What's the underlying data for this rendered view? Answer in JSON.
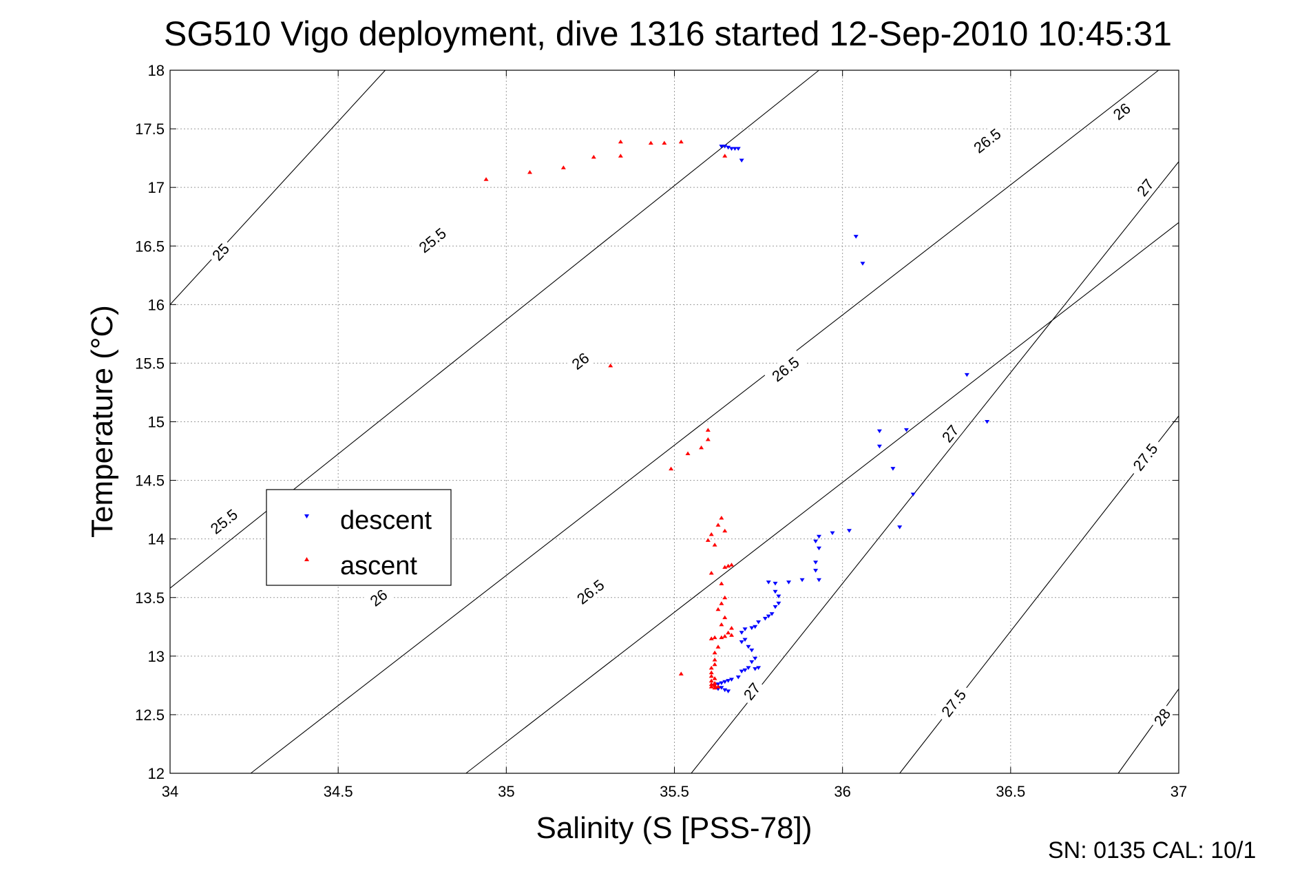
{
  "chart_data": {
    "type": "scatter",
    "title": "SG510 Vigo deployment, dive 1316 started 12-Sep-2010 10:45:31",
    "xlabel": "Salinity (S [PSS-78])",
    "ylabel": "Temperature (°C)",
    "xlim": [
      34,
      37
    ],
    "ylim": [
      12,
      18
    ],
    "xticks": [
      "34",
      "34.5",
      "35",
      "35.5",
      "36",
      "36.5",
      "37"
    ],
    "yticks": [
      "12",
      "12.5",
      "13",
      "13.5",
      "14",
      "14.5",
      "15",
      "15.5",
      "16",
      "16.5",
      "17",
      "17.5",
      "18"
    ],
    "grid": true,
    "legend_position": "left-center",
    "footer": "SN: 0135  CAL: 10/1",
    "colors": {
      "descent": "#0000ff",
      "ascent": "#ff0000",
      "contour": "#000000",
      "grid": "#999999"
    },
    "density_contours": [
      {
        "sigma": "25",
        "points": [
          [
            34.0,
            16.0
          ],
          [
            34.64,
            18.0
          ]
        ],
        "labels": [
          [
            34.15,
            16.45
          ]
        ]
      },
      {
        "sigma": "25.5",
        "points": [
          [
            34.0,
            13.58
          ],
          [
            35.93,
            18.0
          ]
        ],
        "labels": [
          [
            34.16,
            14.15
          ],
          [
            34.78,
            16.55
          ]
        ]
      },
      {
        "sigma": "26",
        "points": [
          [
            34.24,
            12.0
          ],
          [
            36.94,
            18.0
          ]
        ],
        "labels": [
          [
            34.62,
            13.5
          ],
          [
            35.22,
            15.52
          ],
          [
            36.83,
            17.65
          ]
        ]
      },
      {
        "sigma": "26.5",
        "points": [
          [
            34.88,
            12.0
          ],
          [
            37.0,
            16.7
          ]
        ],
        "labels": [
          [
            35.25,
            13.55
          ],
          [
            35.83,
            15.45
          ],
          [
            36.43,
            17.4
          ]
        ]
      },
      {
        "sigma": "27",
        "points": [
          [
            35.55,
            12.0
          ],
          [
            37.0,
            17.22
          ]
        ],
        "labels": [
          [
            35.73,
            12.7
          ],
          [
            36.32,
            14.9
          ],
          [
            36.9,
            17.0
          ]
        ]
      },
      {
        "sigma": "27.5",
        "points": [
          [
            36.17,
            12.0
          ],
          [
            37.0,
            15.05
          ]
        ],
        "labels": [
          [
            36.33,
            12.6
          ],
          [
            36.9,
            14.7
          ]
        ]
      },
      {
        "sigma": "28",
        "points": [
          [
            36.82,
            12.0
          ],
          [
            37.0,
            12.72
          ]
        ],
        "labels": [
          [
            36.95,
            12.48
          ]
        ]
      }
    ],
    "series": [
      {
        "name": "descent",
        "marker": "triangle-down",
        "points": [
          [
            35.64,
            17.35
          ],
          [
            35.65,
            17.35
          ],
          [
            35.66,
            17.34
          ],
          [
            35.67,
            17.33
          ],
          [
            35.68,
            17.33
          ],
          [
            35.69,
            17.33
          ],
          [
            35.7,
            17.23
          ],
          [
            36.04,
            16.58
          ],
          [
            36.06,
            16.35
          ],
          [
            36.37,
            15.4
          ],
          [
            36.43,
            15.0
          ],
          [
            36.11,
            14.92
          ],
          [
            36.11,
            14.79
          ],
          [
            36.19,
            14.93
          ],
          [
            36.15,
            14.6
          ],
          [
            36.21,
            14.38
          ],
          [
            36.17,
            14.1
          ],
          [
            36.02,
            14.07
          ],
          [
            35.97,
            14.05
          ],
          [
            35.93,
            14.02
          ],
          [
            35.92,
            13.98
          ],
          [
            35.93,
            13.92
          ],
          [
            35.92,
            13.8
          ],
          [
            35.92,
            13.73
          ],
          [
            35.93,
            13.65
          ],
          [
            35.88,
            13.65
          ],
          [
            35.84,
            13.63
          ],
          [
            35.8,
            13.62
          ],
          [
            35.78,
            13.63
          ],
          [
            35.8,
            13.55
          ],
          [
            35.81,
            13.51
          ],
          [
            35.81,
            13.45
          ],
          [
            35.8,
            13.42
          ],
          [
            35.79,
            13.36
          ],
          [
            35.78,
            13.34
          ],
          [
            35.77,
            13.32
          ],
          [
            35.75,
            13.29
          ],
          [
            35.74,
            13.25
          ],
          [
            35.73,
            13.24
          ],
          [
            35.71,
            13.23
          ],
          [
            35.7,
            13.2
          ],
          [
            35.71,
            13.14
          ],
          [
            35.7,
            13.12
          ],
          [
            35.72,
            13.08
          ],
          [
            35.73,
            13.05
          ],
          [
            35.74,
            12.98
          ],
          [
            35.73,
            12.95
          ],
          [
            35.72,
            12.9
          ],
          [
            35.71,
            12.88
          ],
          [
            35.7,
            12.87
          ],
          [
            35.74,
            12.89
          ],
          [
            35.75,
            12.9
          ],
          [
            35.69,
            12.82
          ],
          [
            35.67,
            12.8
          ],
          [
            35.66,
            12.79
          ],
          [
            35.65,
            12.78
          ],
          [
            35.64,
            12.77
          ],
          [
            35.63,
            12.76
          ],
          [
            35.62,
            12.75
          ],
          [
            35.64,
            12.73
          ],
          [
            35.65,
            12.71
          ],
          [
            35.66,
            12.7
          ],
          [
            35.63,
            12.72
          ]
        ]
      },
      {
        "name": "ascent",
        "marker": "triangle-up",
        "points": [
          [
            34.94,
            17.07
          ],
          [
            35.07,
            17.13
          ],
          [
            35.17,
            17.17
          ],
          [
            35.26,
            17.26
          ],
          [
            35.34,
            17.27
          ],
          [
            35.34,
            17.39
          ],
          [
            35.43,
            17.38
          ],
          [
            35.47,
            17.38
          ],
          [
            35.52,
            17.39
          ],
          [
            35.65,
            17.27
          ],
          [
            35.31,
            15.48
          ],
          [
            35.6,
            14.93
          ],
          [
            35.6,
            14.85
          ],
          [
            35.58,
            14.78
          ],
          [
            35.54,
            14.73
          ],
          [
            35.49,
            14.6
          ],
          [
            35.64,
            14.18
          ],
          [
            35.63,
            14.12
          ],
          [
            35.65,
            14.07
          ],
          [
            35.61,
            14.04
          ],
          [
            35.6,
            13.99
          ],
          [
            35.62,
            13.95
          ],
          [
            35.67,
            13.78
          ],
          [
            35.66,
            13.77
          ],
          [
            35.65,
            13.76
          ],
          [
            35.61,
            13.71
          ],
          [
            35.64,
            13.62
          ],
          [
            35.65,
            13.5
          ],
          [
            35.64,
            13.45
          ],
          [
            35.63,
            13.4
          ],
          [
            35.65,
            13.33
          ],
          [
            35.64,
            13.27
          ],
          [
            35.67,
            13.24
          ],
          [
            35.66,
            13.2
          ],
          [
            35.67,
            13.18
          ],
          [
            35.65,
            13.17
          ],
          [
            35.64,
            13.16
          ],
          [
            35.62,
            13.16
          ],
          [
            35.61,
            13.15
          ],
          [
            35.63,
            13.08
          ],
          [
            35.62,
            13.03
          ],
          [
            35.62,
            12.97
          ],
          [
            35.62,
            12.93
          ],
          [
            35.61,
            12.9
          ],
          [
            35.61,
            12.86
          ],
          [
            35.61,
            12.83
          ],
          [
            35.62,
            12.81
          ],
          [
            35.61,
            12.79
          ],
          [
            35.62,
            12.77
          ],
          [
            35.61,
            12.76
          ],
          [
            35.62,
            12.75
          ],
          [
            35.61,
            12.74
          ],
          [
            35.62,
            12.73
          ],
          [
            35.63,
            12.74
          ],
          [
            35.52,
            12.85
          ]
        ]
      }
    ]
  }
}
